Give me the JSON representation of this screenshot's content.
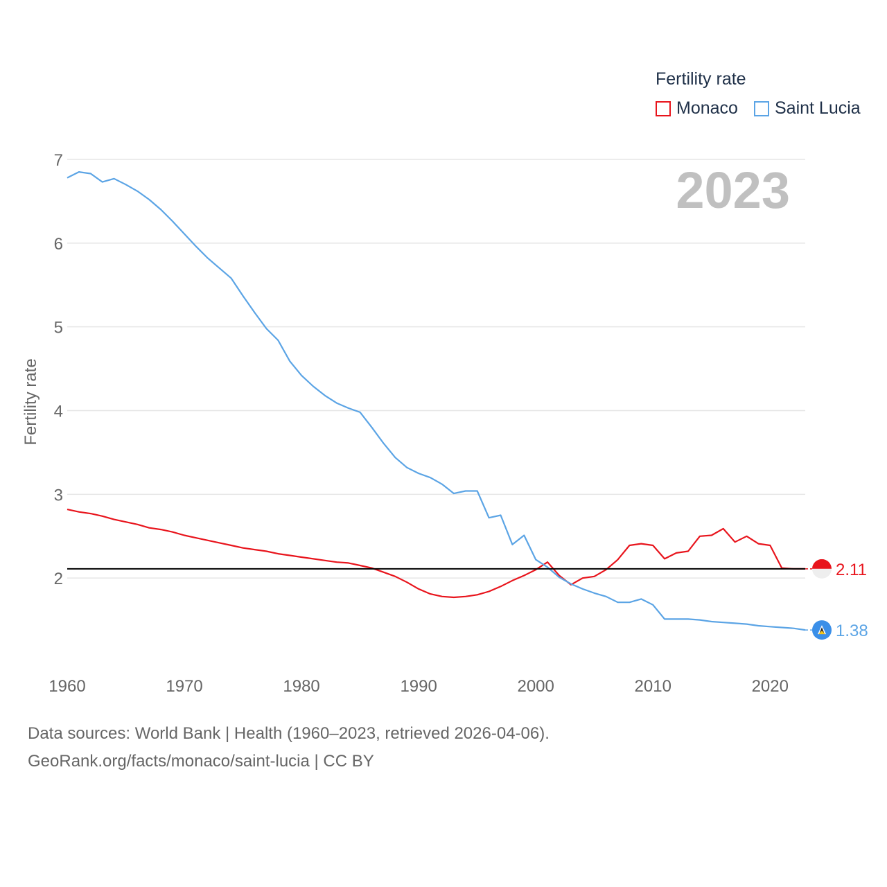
{
  "legend": {
    "title": "Fertility rate",
    "items": [
      {
        "name": "Monaco",
        "color": "#e8141c"
      },
      {
        "name": "Saint Lucia",
        "color": "#5ba4e5"
      }
    ]
  },
  "year_watermark": "2023",
  "reference_value": 2.11,
  "end_labels": {
    "monaco": "2.11",
    "saint_lucia": "1.38"
  },
  "source": {
    "line1": "Data sources: World Bank | Health (1960–2023, retrieved 2026-04-06).",
    "line2": "GeoRank.org/facts/monaco/saint-lucia | CC BY"
  },
  "chart_data": {
    "type": "line",
    "title": "Fertility rate",
    "xlabel": "",
    "ylabel": "Fertility rate",
    "xlim": [
      1960,
      2023
    ],
    "ylim": [
      1.0,
      7.0
    ],
    "xticks": [
      1960,
      1970,
      1980,
      1990,
      2000,
      2010,
      2020
    ],
    "yticks": [
      2,
      3,
      4,
      5,
      6,
      7
    ],
    "grid": true,
    "x": [
      1960,
      1961,
      1962,
      1963,
      1964,
      1965,
      1966,
      1967,
      1968,
      1969,
      1970,
      1971,
      1972,
      1973,
      1974,
      1975,
      1976,
      1977,
      1978,
      1979,
      1980,
      1981,
      1982,
      1983,
      1984,
      1985,
      1986,
      1987,
      1988,
      1989,
      1990,
      1991,
      1992,
      1993,
      1994,
      1995,
      1996,
      1997,
      1998,
      1999,
      2000,
      2001,
      2002,
      2003,
      2004,
      2005,
      2006,
      2007,
      2008,
      2009,
      2010,
      2011,
      2012,
      2013,
      2014,
      2015,
      2016,
      2017,
      2018,
      2019,
      2020,
      2021,
      2022,
      2023
    ],
    "series": [
      {
        "name": "Monaco",
        "color": "#e8141c",
        "values": [
          2.82,
          2.79,
          2.77,
          2.74,
          2.7,
          2.67,
          2.64,
          2.6,
          2.58,
          2.55,
          2.51,
          2.48,
          2.45,
          2.42,
          2.39,
          2.36,
          2.34,
          2.32,
          2.29,
          2.27,
          2.25,
          2.23,
          2.21,
          2.19,
          2.18,
          2.15,
          2.12,
          2.07,
          2.02,
          1.95,
          1.87,
          1.81,
          1.78,
          1.77,
          1.78,
          1.8,
          1.84,
          1.9,
          1.97,
          2.03,
          2.1,
          2.19,
          2.03,
          1.92,
          2.0,
          2.02,
          2.1,
          2.22,
          2.39,
          2.41,
          2.39,
          2.23,
          2.3,
          2.32,
          2.5,
          2.51,
          2.59,
          2.43,
          2.5,
          2.41,
          2.39,
          2.12,
          2.11,
          2.11
        ]
      },
      {
        "name": "Saint Lucia",
        "color": "#5ba4e5",
        "values": [
          6.78,
          6.85,
          6.83,
          6.73,
          6.77,
          6.7,
          6.62,
          6.52,
          6.4,
          6.26,
          6.11,
          5.96,
          5.82,
          5.7,
          5.58,
          5.37,
          5.17,
          4.98,
          4.84,
          4.59,
          4.42,
          4.29,
          4.18,
          4.09,
          4.03,
          3.98,
          3.8,
          3.61,
          3.44,
          3.32,
          3.25,
          3.2,
          3.12,
          3.01,
          3.04,
          3.04,
          2.72,
          2.75,
          2.4,
          2.51,
          2.22,
          2.13,
          2.01,
          1.93,
          1.87,
          1.82,
          1.78,
          1.71,
          1.71,
          1.75,
          1.68,
          1.51,
          1.51,
          1.51,
          1.5,
          1.48,
          1.47,
          1.46,
          1.45,
          1.43,
          1.42,
          1.41,
          1.4,
          1.38
        ]
      }
    ]
  }
}
